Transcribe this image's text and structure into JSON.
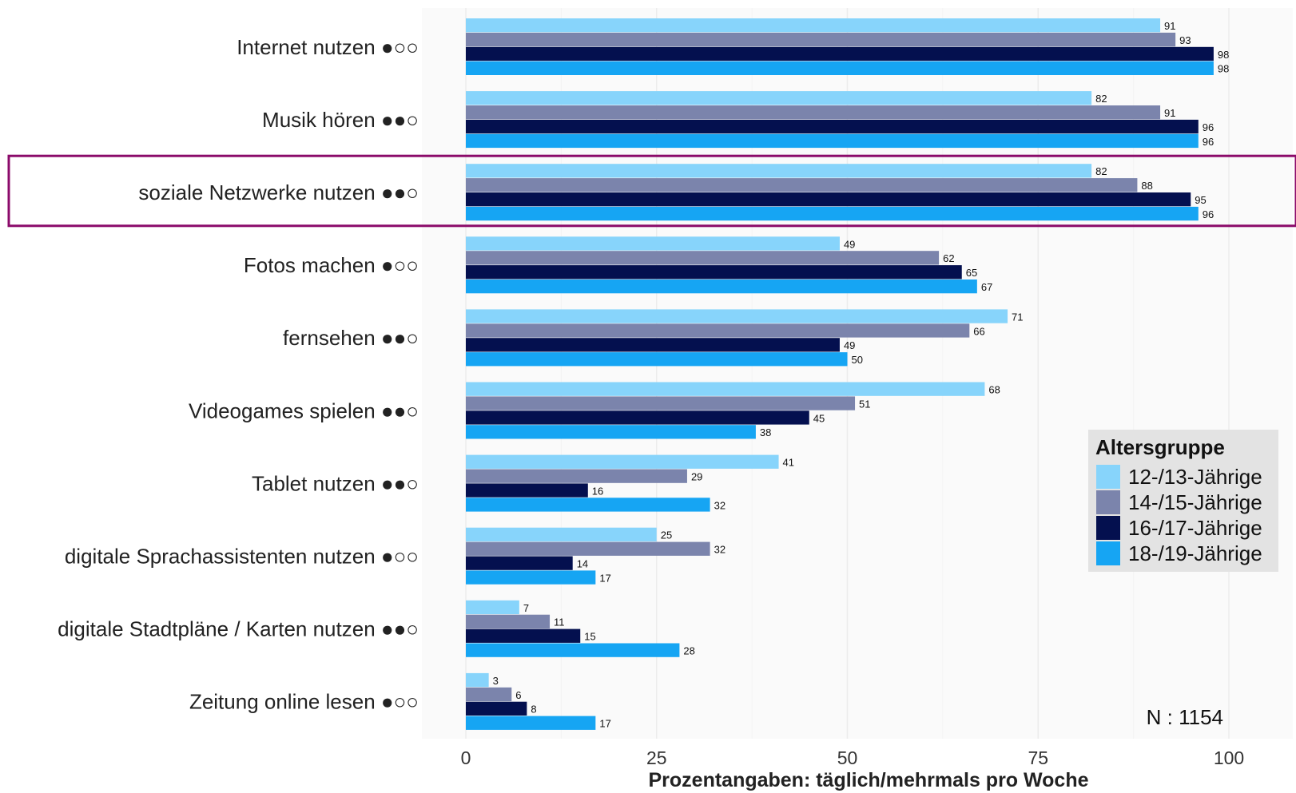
{
  "chart_data": {
    "type": "bar",
    "orientation": "horizontal",
    "categories": [
      "Internet nutzen ●○○",
      "Musik hören ●●○",
      "soziale Netzwerke nutzen ●●○",
      "Fotos machen ●○○",
      "fernsehen ●●○",
      "Videogames spielen ●●○",
      "Tablet nutzen ●●○",
      "digitale Sprachassistenten nutzen ●○○",
      "digitale Stadtpläne / Karten nutzen ●●○",
      "Zeitung online lesen ●○○"
    ],
    "series": [
      {
        "name": "12-/13-Jährige",
        "color": "#87d4fb",
        "values": [
          91,
          82,
          82,
          49,
          71,
          68,
          41,
          25,
          7,
          3
        ]
      },
      {
        "name": "14-/15-Jährige",
        "color": "#7b84ac",
        "values": [
          93,
          91,
          88,
          62,
          66,
          51,
          29,
          32,
          11,
          6
        ]
      },
      {
        "name": "16-/17-Jährige",
        "color": "#04104f",
        "values": [
          98,
          96,
          95,
          65,
          49,
          45,
          16,
          14,
          15,
          8
        ]
      },
      {
        "name": "18-/19-Jährige",
        "color": "#16a5f3",
        "values": [
          98,
          96,
          96,
          67,
          50,
          38,
          32,
          17,
          28,
          17
        ]
      }
    ],
    "xlim": [
      0,
      100
    ],
    "xticks": [
      0,
      25,
      50,
      75,
      100
    ],
    "xlabel": "Prozentangaben: täglich/mehrmals pro Woche",
    "ylabel": "",
    "title": "",
    "legend": {
      "title": "Altersgruppe",
      "placement": "right"
    },
    "annotation": "N : 1154",
    "highlighted_category": "soziale Netzwerke nutzen ●●○",
    "highlight_color": "#8b0a6a",
    "grid": true
  }
}
